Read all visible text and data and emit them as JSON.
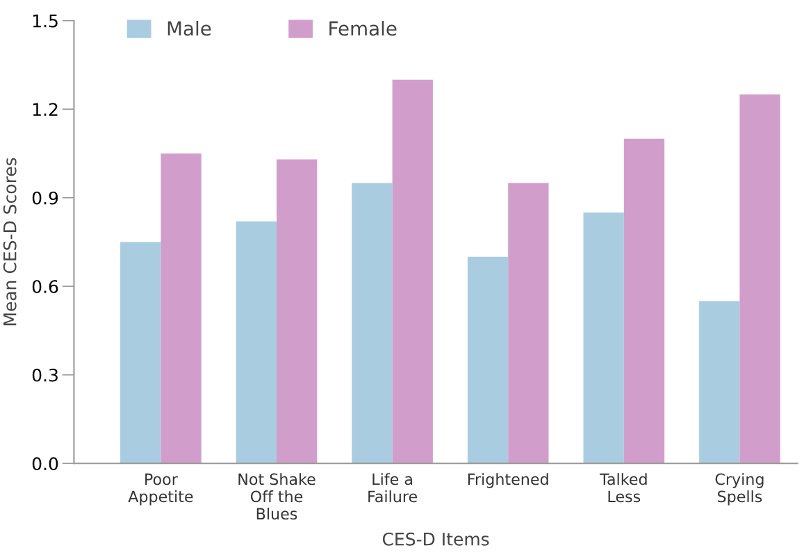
{
  "chart_data": {
    "type": "bar",
    "xlabel": "CES-D Items",
    "ylabel": "Mean CES-D Scores",
    "categories": [
      "Poor\nAppetite",
      "Not Shake\nOff the\nBlues",
      "Life a\nFailure",
      "Frightened",
      "Talked\nLess",
      "Crying\nSpells"
    ],
    "series": [
      {
        "name": "Male",
        "color": "#a9cce0",
        "values": [
          0.75,
          0.82,
          0.95,
          0.7,
          0.85,
          0.55
        ]
      },
      {
        "name": "Female",
        "color": "#d19ecb",
        "values": [
          1.05,
          1.03,
          1.3,
          0.95,
          1.1,
          1.25
        ]
      }
    ],
    "ylim": [
      0,
      1.5
    ],
    "yticks": [
      {
        "value": 0,
        "label": "0.0"
      },
      0.3,
      0.6,
      0.9,
      1.2,
      1.5
    ],
    "grid": false,
    "legend": "top"
  }
}
